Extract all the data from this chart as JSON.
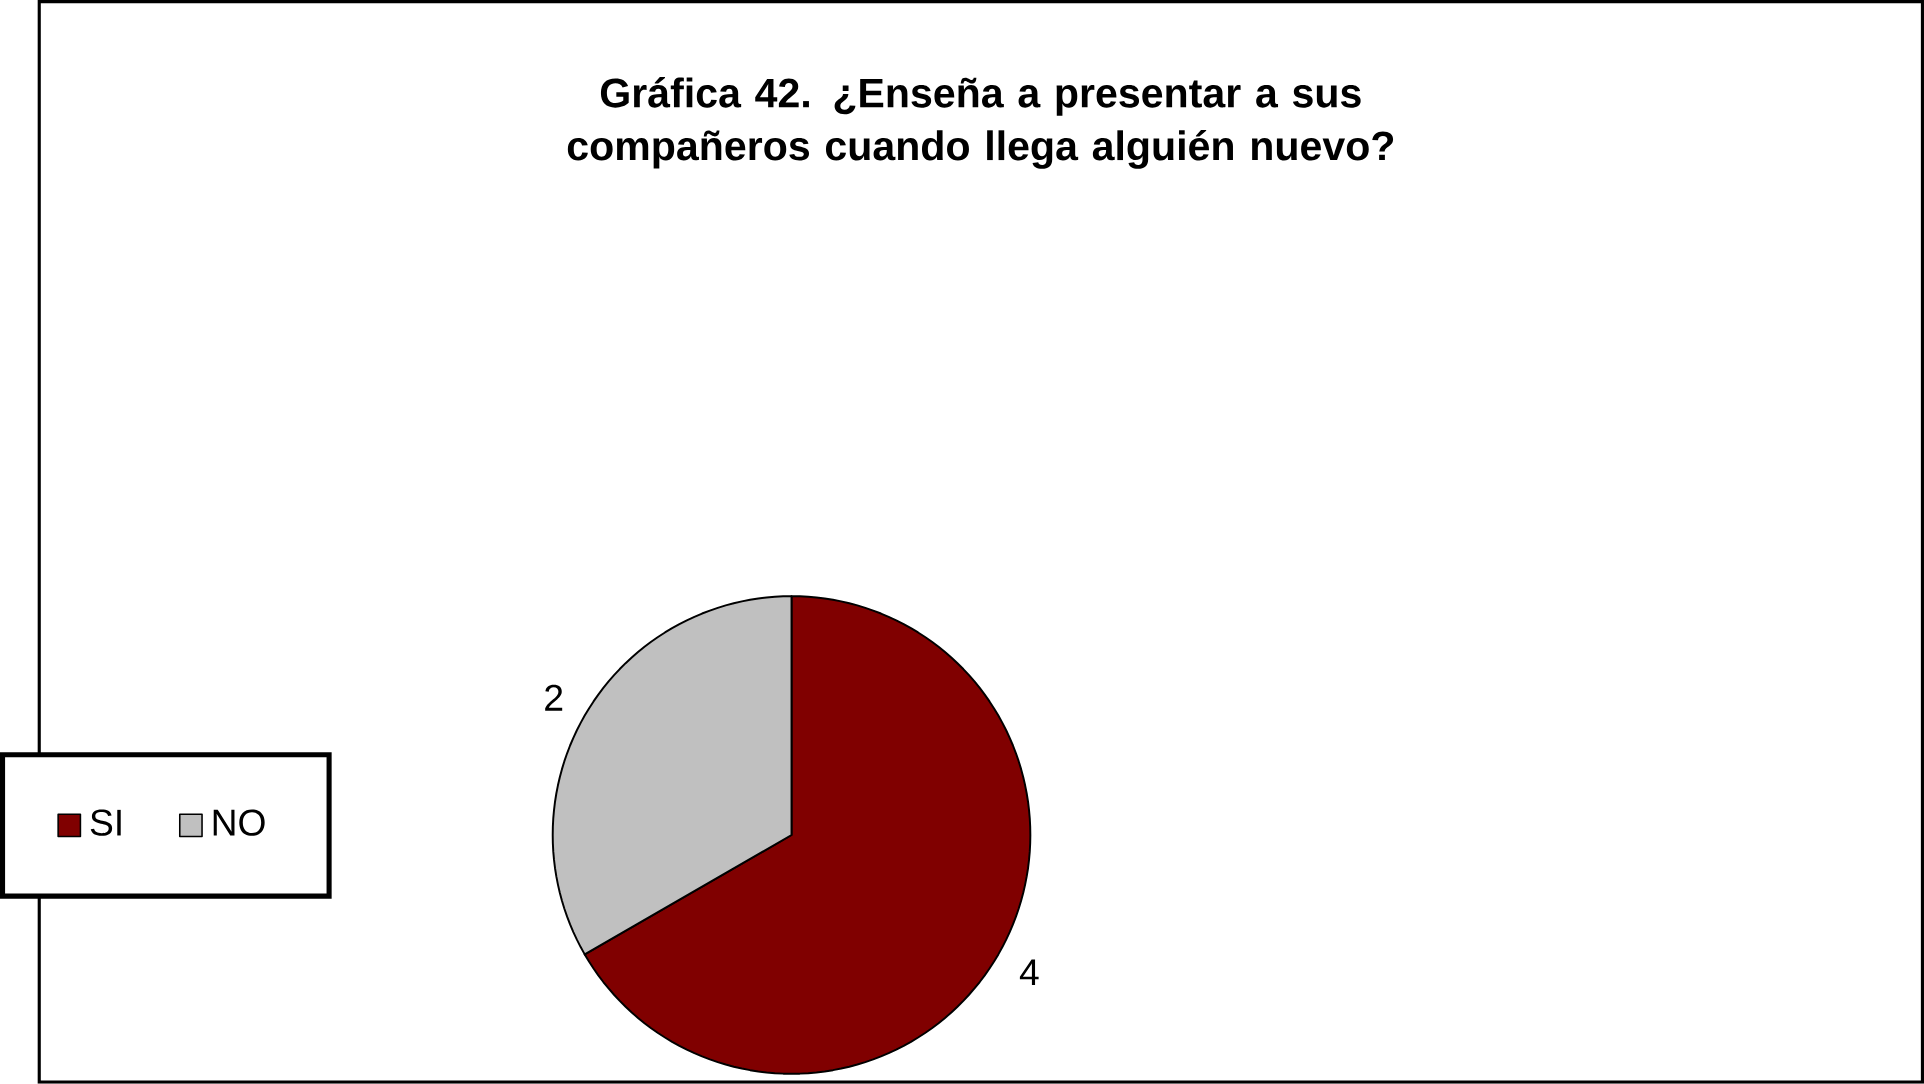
{
  "chart_data": {
    "type": "pie",
    "title": "Gráfica 42.  ¿Enseña a presentar a sus compañeros cuando llega alguién nuevo?",
    "categories": [
      "SI",
      "NO"
    ],
    "values": [
      4,
      2
    ],
    "colors": [
      "#800000",
      "#c0c0c0"
    ],
    "data_labels": true,
    "legend": "left"
  }
}
